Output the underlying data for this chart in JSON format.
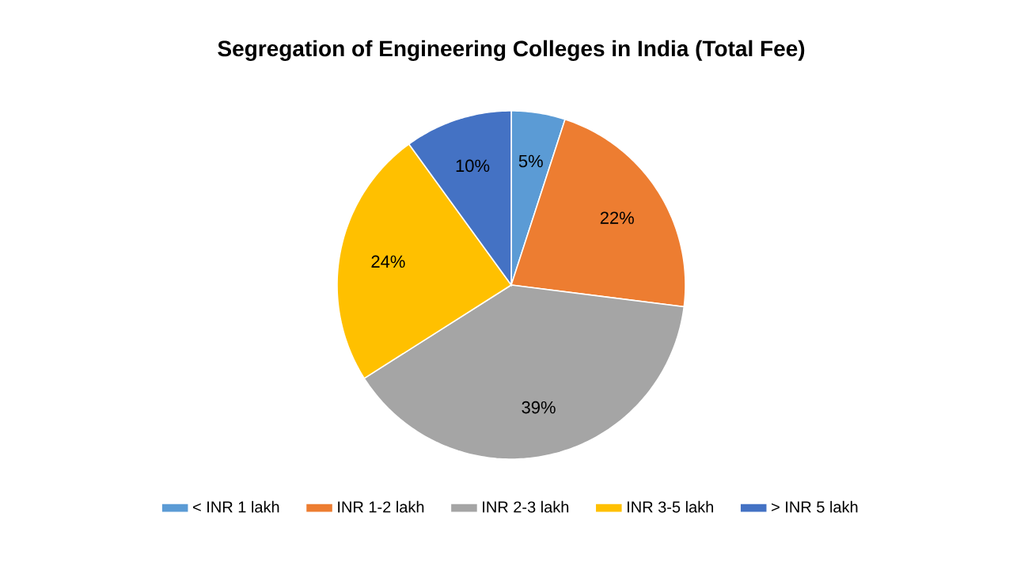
{
  "chart_data": {
    "type": "pie",
    "title": "Segregation of Engineering Colleges in India (Total Fee)",
    "categories": [
      "< INR 1 lakh",
      "INR 1-2 lakh",
      "INR 2-3 lakh",
      "INR 3-5 lakh",
      "> INR 5 lakh"
    ],
    "values": [
      5,
      22,
      39,
      24,
      10
    ],
    "colors": [
      "#5b9bd5",
      "#ed7d31",
      "#a5a5a5",
      "#ffc000",
      "#4472c4"
    ],
    "value_labels": [
      "5%",
      "22%",
      "39%",
      "24%",
      "10%"
    ],
    "legend": "bottom"
  }
}
